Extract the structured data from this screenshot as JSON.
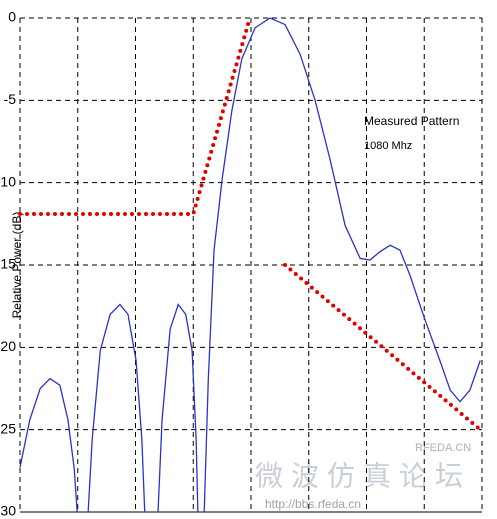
{
  "chart_data": {
    "type": "line",
    "y_label": "Relative Power (dB)",
    "annotations": [
      "Measured Pattern",
      "1080 Mhz"
    ],
    "watermark": [
      "微波仿真论坛",
      "http://bbs.rfeda.cn",
      "RFEDA.CN"
    ],
    "xlim": [
      0,
      8
    ],
    "xticks": [
      0,
      1,
      2,
      3,
      4,
      5,
      6,
      7,
      8
    ],
    "ylim": [
      -30,
      0
    ],
    "yticks": [
      0,
      -5,
      {
        "value": -10,
        "label": "10"
      },
      {
        "value": -15,
        "label": "15"
      },
      {
        "value": -20,
        "label": "20"
      },
      {
        "value": -25,
        "label": "25"
      },
      {
        "value": -30,
        "label": "30"
      }
    ],
    "grid": true,
    "series": [
      {
        "color": "#2a33c8",
        "style": "solid",
        "x": [
          0,
          0.17,
          0.35,
          0.52,
          0.69,
          0.83,
          0.94,
          0.99,
          null,
          1.18,
          1.25,
          1.39,
          1.56,
          1.73,
          1.87,
          2.01,
          2.11,
          2.16,
          null,
          2.39,
          2.46,
          2.6,
          2.74,
          2.87,
          2.98,
          3.05,
          3.08,
          null,
          3.19,
          3.26,
          3.36,
          3.5,
          3.67,
          3.84,
          4.07,
          4.33,
          4.59,
          4.85,
          5.11,
          5.37,
          5.63,
          5.89,
          6.06,
          6.23,
          6.41,
          6.58,
          6.75,
          7.01,
          7.27,
          7.45,
          7.62,
          7.79,
          7.97
        ],
        "values": [
          -27.3,
          -24.4,
          -22.5,
          -21.9,
          -22.3,
          -24.4,
          -27.4,
          -30,
          null,
          -30,
          -25.6,
          -20.2,
          -18,
          -17.4,
          -18,
          -20.8,
          -25.6,
          -30,
          null,
          -30,
          -24.4,
          -18.9,
          -17.4,
          -18,
          -20.2,
          -25.6,
          -30,
          null,
          -30,
          -22,
          -14.1,
          -9.8,
          -5.6,
          -2.5,
          -0.6,
          0,
          -0.4,
          -2.2,
          -5,
          -8.6,
          -12.6,
          -14.6,
          -14.7,
          -14.2,
          -13.8,
          -14.1,
          -15.6,
          -18.3,
          -20.8,
          -22.6,
          -23.3,
          -22.6,
          -20.8
        ]
      },
      {
        "color": "#e00000",
        "style": "dotted",
        "x": [
          0,
          3.0,
          3.98,
          null,
          4.59,
          7.97
        ],
        "values": [
          -11.9,
          -11.9,
          0,
          null,
          -15,
          -25
        ]
      }
    ]
  }
}
